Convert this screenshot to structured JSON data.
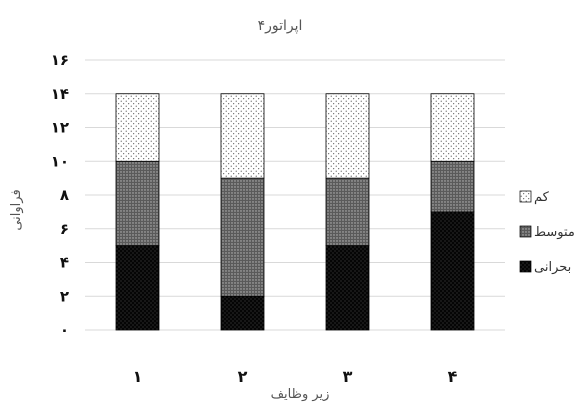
{
  "chart_data": {
    "type": "bar",
    "stacked": true,
    "title": "اپراتور۴",
    "xlabel": "زیر وظایف",
    "ylabel": "فراوانی",
    "categories": [
      "۱",
      "۲",
      "۳",
      "۴"
    ],
    "ylim": [
      0,
      16
    ],
    "yticks": [
      0,
      2,
      4,
      6,
      8,
      10,
      12,
      14,
      16
    ],
    "ytick_labels": [
      "۰",
      "۲",
      "۴",
      "۶",
      "۸",
      "۱۰",
      "۱۲",
      "۱۴",
      "۱۶"
    ],
    "grid": true,
    "legend_position": "right",
    "series": [
      {
        "name": "بحرانی",
        "values": [
          5,
          2,
          5,
          7
        ],
        "pattern": "dense-dots-black"
      },
      {
        "name": "متوسط",
        "values": [
          5,
          7,
          4,
          3
        ],
        "pattern": "medium-dots-gray"
      },
      {
        "name": "کم",
        "values": [
          4,
          5,
          5,
          4
        ],
        "pattern": "sparse-dots-white"
      }
    ],
    "legend_order": [
      "کم",
      "متوسط",
      "بحرانی"
    ]
  }
}
